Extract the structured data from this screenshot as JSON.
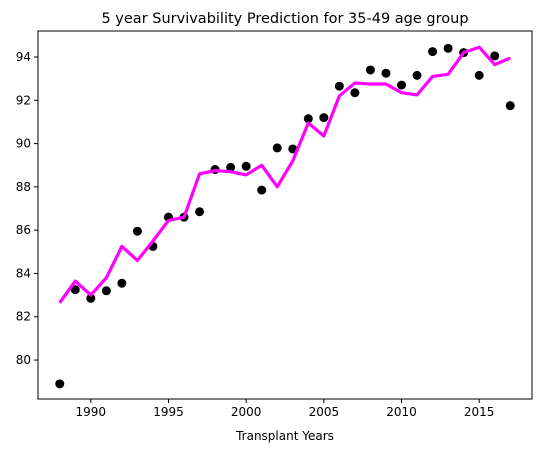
{
  "chart_data": {
    "type": "line",
    "title": "5 year Survivability Prediction for 35-49 age group",
    "xlabel": "Transplant Years",
    "ylabel": "",
    "xlim": [
      1986.6,
      2018.4
    ],
    "ylim": [
      78.2,
      95.2
    ],
    "x_ticks": [
      1990,
      1995,
      2000,
      2005,
      2010,
      2015
    ],
    "y_ticks": [
      80,
      82,
      84,
      86,
      88,
      90,
      92,
      94
    ],
    "grid": false,
    "legend": "none",
    "x": [
      1988,
      1989,
      1990,
      1991,
      1992,
      1993,
      1994,
      1995,
      1996,
      1997,
      1998,
      1999,
      2000,
      2001,
      2002,
      2003,
      2004,
      2005,
      2006,
      2007,
      2008,
      2009,
      2010,
      2011,
      2012,
      2013,
      2014,
      2015,
      2016,
      2017
    ],
    "series": [
      {
        "kind": "scatter",
        "color": "#000000",
        "values": [
          78.9,
          83.25,
          82.85,
          83.2,
          83.55,
          85.95,
          85.25,
          86.6,
          86.6,
          86.85,
          88.8,
          88.9,
          88.95,
          87.85,
          89.8,
          89.75,
          91.15,
          91.2,
          92.65,
          92.35,
          93.4,
          93.25,
          92.7,
          93.15,
          94.25,
          94.4,
          94.2,
          93.15,
          94.05,
          91.75
        ]
      },
      {
        "kind": "line",
        "color": "#ff00ff",
        "values": [
          82.65,
          83.65,
          83.0,
          83.8,
          85.25,
          84.6,
          85.5,
          86.45,
          86.6,
          88.6,
          88.75,
          88.7,
          88.55,
          89.0,
          88.0,
          89.2,
          90.95,
          90.35,
          92.2,
          92.8,
          92.75,
          92.75,
          92.35,
          92.25,
          93.1,
          93.2,
          94.2,
          94.45,
          93.65,
          93.95
        ]
      }
    ]
  }
}
